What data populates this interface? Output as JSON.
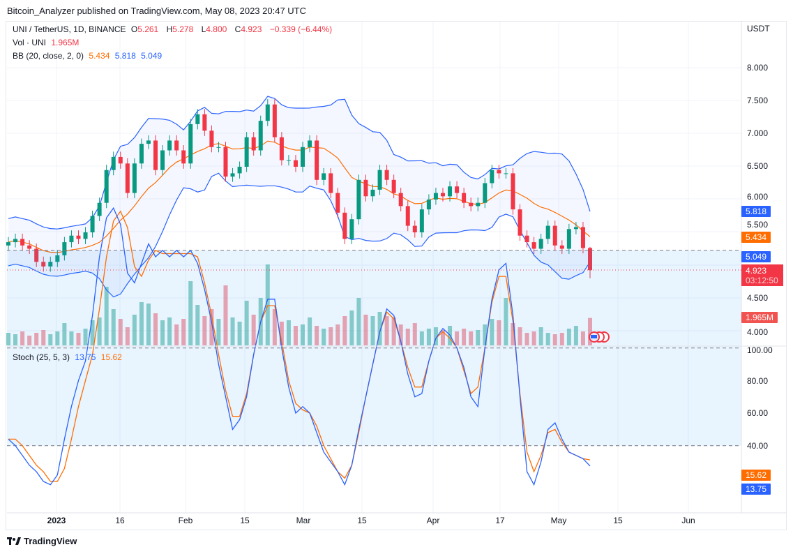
{
  "publisher": "Bitcoin_Analyzer published on TradingView.com, May 08, 2023 20:47 UTC",
  "legend": {
    "symbol": "UNI / TetherUS, 1D, BINANCE",
    "open_label": "O",
    "open": "5.261",
    "high_label": "H",
    "high": "5.278",
    "low_label": "L",
    "low": "4.800",
    "close_label": "C",
    "close": "4.923",
    "change": "−0.339 (−6.44%)",
    "vol_label": "Vol · UNI",
    "vol": "1.965M",
    "bb_label": "BB (20, close, 2, 0)",
    "bb_basis": "5.434",
    "bb_upper": "5.818",
    "bb_lower": "5.049",
    "stoch_label": "Stoch (25, 5, 3)",
    "stoch_k": "13.75",
    "stoch_d": "15.62"
  },
  "price_axis": {
    "currency": "USDT",
    "labels": [
      "8.000",
      "7.500",
      "7.000",
      "6.500",
      "6.000",
      "5.500",
      "4.500",
      "4.000"
    ]
  },
  "stoch_axis": {
    "labels": [
      "100.00",
      "80.00",
      "60.00",
      "40.00"
    ]
  },
  "badges": {
    "bb_upper": "5.818",
    "bb_basis": "5.434",
    "bb_lower": "5.049",
    "last_price": "4.923",
    "countdown": "03:12:50",
    "volume": "1.965M",
    "stoch_d": "15.62",
    "stoch_k": "13.75"
  },
  "time_axis": [
    "2023",
    "16",
    "Feb",
    "15",
    "Mar",
    "15",
    "Apr",
    "17",
    "May",
    "15",
    "Jun"
  ],
  "logo_text": "TradingView",
  "colors": {
    "up": "#089981",
    "down": "#f23645",
    "bb_band": "#2962ff",
    "bb_basis": "#ff6d00",
    "stoch_k": "#2962ff",
    "stoch_d": "#ff6d00"
  },
  "chart_data": {
    "type": "candlestick",
    "title": "UNI / TetherUS, 1D, BINANCE",
    "first_open": 5.3,
    "last_candle": {
      "open": 5.261,
      "high": 5.278,
      "low": 4.8,
      "close": 4.923
    },
    "closes": [
      5.35,
      5.4,
      5.3,
      5.25,
      5.05,
      4.98,
      5.05,
      5.15,
      5.35,
      5.45,
      5.4,
      5.5,
      5.75,
      5.95,
      6.45,
      6.65,
      6.55,
      6.1,
      6.55,
      6.85,
      6.9,
      6.45,
      6.75,
      6.9,
      6.75,
      6.55,
      7.15,
      7.3,
      7.05,
      6.8,
      6.8,
      6.35,
      6.4,
      6.5,
      6.95,
      6.75,
      7.2,
      7.45,
      6.95,
      6.6,
      6.6,
      6.5,
      6.8,
      6.9,
      6.3,
      6.4,
      6.1,
      5.8,
      5.4,
      5.7,
      6.3,
      6.05,
      6.15,
      6.45,
      6.3,
      6.1,
      5.9,
      5.6,
      5.5,
      5.85,
      6.0,
      6.1,
      6.05,
      6.2,
      6.1,
      5.95,
      5.9,
      5.95,
      6.25,
      6.45,
      6.4,
      6.4,
      5.85,
      5.45,
      5.35,
      5.25,
      5.4,
      5.6,
      5.3,
      5.25,
      5.55,
      5.58,
      5.26,
      4.923
    ],
    "volumes_millions": [
      0.9,
      0.8,
      1.0,
      0.7,
      0.9,
      1.1,
      0.8,
      1.0,
      1.6,
      1.0,
      0.9,
      1.2,
      1.8,
      2.0,
      4.2,
      2.6,
      1.9,
      1.3,
      2.2,
      3.1,
      3.0,
      2.3,
      1.8,
      2.0,
      1.5,
      1.9,
      4.6,
      2.9,
      2.1,
      2.6,
      1.9,
      4.3,
      2.0,
      1.7,
      3.2,
      2.2,
      3.4,
      5.8,
      2.6,
      1.7,
      1.8,
      1.4,
      1.5,
      2.0,
      1.4,
      1.2,
      1.3,
      1.5,
      2.1,
      2.5,
      3.4,
      2.2,
      2.1,
      2.4,
      2.1,
      2.0,
      1.5,
      1.2,
      1.6,
      1.0,
      1.2,
      1.3,
      1.1,
      1.4,
      1.0,
      1.2,
      1.0,
      1.1,
      1.5,
      1.9,
      1.8,
      3.4,
      1.6,
      1.3,
      0.9,
      1.0,
      1.3,
      0.9,
      0.8,
      0.9,
      1.2,
      1.4,
      1.0,
      1.965
    ],
    "stoch_k": [
      22,
      20,
      17,
      14,
      12,
      9,
      8,
      11,
      22,
      32,
      40,
      46,
      60,
      78,
      90,
      93,
      88,
      73,
      70,
      76,
      82,
      78,
      80,
      78,
      80,
      78,
      80,
      76,
      68,
      58,
      45,
      35,
      25,
      28,
      35,
      48,
      58,
      65,
      65,
      50,
      38,
      30,
      32,
      30,
      24,
      18,
      15,
      12,
      8,
      14,
      25,
      35,
      45,
      55,
      62,
      60,
      52,
      42,
      35,
      36,
      46,
      53,
      56,
      54,
      50,
      44,
      35,
      32,
      50,
      65,
      74,
      76,
      60,
      35,
      12,
      8,
      15,
      25,
      27,
      22,
      18,
      17,
      16,
      13.75
    ],
    "stoch_d": [
      22,
      22,
      20,
      17,
      14,
      12,
      9,
      9,
      13,
      22,
      32,
      40,
      48,
      62,
      78,
      89,
      92,
      87,
      75,
      72,
      77,
      80,
      79,
      79,
      79,
      79,
      79,
      78,
      70,
      60,
      48,
      37,
      29,
      29,
      36,
      48,
      58,
      63,
      63,
      52,
      40,
      33,
      31,
      30,
      26,
      20,
      16,
      12,
      10,
      14,
      24,
      35,
      45,
      55,
      61,
      59,
      52,
      44,
      38,
      38,
      46,
      53,
      55,
      53,
      50,
      43,
      36,
      38,
      50,
      64,
      72,
      72,
      58,
      36,
      18,
      12,
      17,
      24,
      25,
      21,
      18,
      17,
      16,
      15.62
    ],
    "bb": {
      "period": 20,
      "mult": 2,
      "basis_last": 5.434,
      "upper_last": 5.818,
      "lower_last": 5.049
    },
    "price_range": [
      3.85,
      8.6
    ],
    "stoch_range": [
      0,
      100
    ],
    "stoch_levels": [
      80,
      50,
      20
    ],
    "x_range": [
      "2022-12-20",
      "2023-06-12"
    ]
  }
}
